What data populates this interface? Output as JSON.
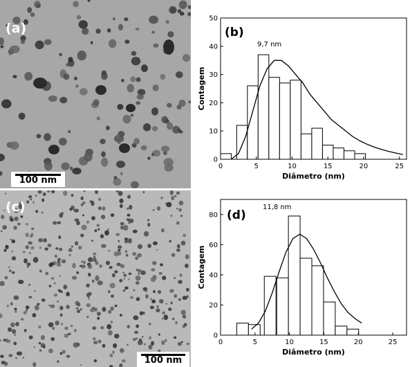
{
  "panels": {
    "a": {
      "label": "(a)",
      "scale_bar": "100 nm"
    },
    "b": {
      "label": "(b)"
    },
    "c": {
      "label": "(c)",
      "scale_bar": "100 nm"
    },
    "d": {
      "label": "(d)"
    }
  },
  "chart_data": [
    {
      "type": "bar",
      "panel": "(b)",
      "xlabel": "Diâmetro (nm)",
      "ylabel": "Contagem",
      "annotation": "9,7 nm",
      "xlim": [
        0,
        26
      ],
      "ylim": [
        0,
        50
      ],
      "xticks": [
        "0",
        "5",
        "10",
        "15",
        "20",
        "25"
      ],
      "yticks": [
        "0",
        "10",
        "20",
        "30",
        "40",
        "50"
      ],
      "bin_width": 1.5,
      "bins": [
        {
          "x": 0.75,
          "count": 2
        },
        {
          "x": 3.0,
          "count": 12
        },
        {
          "x": 4.5,
          "count": 26
        },
        {
          "x": 6.0,
          "count": 37
        },
        {
          "x": 7.5,
          "count": 29
        },
        {
          "x": 9.0,
          "count": 27
        },
        {
          "x": 10.5,
          "count": 28
        },
        {
          "x": 12.0,
          "count": 9
        },
        {
          "x": 13.5,
          "count": 11
        },
        {
          "x": 15.0,
          "count": 5
        },
        {
          "x": 16.5,
          "count": 4
        },
        {
          "x": 18.0,
          "count": 3
        },
        {
          "x": 19.5,
          "count": 2
        }
      ],
      "fit_curve": [
        [
          1.5,
          0
        ],
        [
          2.5,
          2
        ],
        [
          3.5,
          8
        ],
        [
          4.5,
          17
        ],
        [
          5.5,
          26
        ],
        [
          6.5,
          32
        ],
        [
          7.5,
          35
        ],
        [
          8.5,
          35
        ],
        [
          9.5,
          33
        ],
        [
          10.5,
          30
        ],
        [
          11.5,
          27
        ],
        [
          12.5,
          23
        ],
        [
          13.5,
          20
        ],
        [
          14.5,
          17
        ],
        [
          15.5,
          14
        ],
        [
          16.5,
          12
        ],
        [
          17.5,
          10
        ],
        [
          18.5,
          8
        ],
        [
          19.5,
          6.5
        ],
        [
          20.5,
          5.3
        ],
        [
          21.5,
          4.3
        ],
        [
          22.5,
          3.5
        ],
        [
          23.5,
          2.8
        ],
        [
          24.5,
          2.2
        ],
        [
          25.5,
          1.7
        ]
      ]
    },
    {
      "type": "bar",
      "panel": "(d)",
      "xlabel": "Diâmetro (nm)",
      "ylabel": "Contagem",
      "annotation": "11,8 nm",
      "xlim": [
        0,
        27
      ],
      "ylim": [
        0,
        90
      ],
      "xticks": [
        "0",
        "5",
        "10",
        "15",
        "20",
        "25"
      ],
      "yticks": [
        "0",
        "20",
        "40",
        "60",
        "80"
      ],
      "bin_width": 1.7,
      "bins": [
        {
          "x": 3.2,
          "count": 8
        },
        {
          "x": 4.9,
          "count": 7
        },
        {
          "x": 7.2,
          "count": 39
        },
        {
          "x": 9.0,
          "count": 38
        },
        {
          "x": 10.7,
          "count": 79
        },
        {
          "x": 12.4,
          "count": 51
        },
        {
          "x": 14.1,
          "count": 46
        },
        {
          "x": 15.8,
          "count": 22
        },
        {
          "x": 17.5,
          "count": 6
        },
        {
          "x": 19.2,
          "count": 4
        }
      ],
      "fit_curve": [
        [
          4.5,
          4
        ],
        [
          5.5,
          8
        ],
        [
          6.5,
          16
        ],
        [
          7.5,
          28
        ],
        [
          8.5,
          42
        ],
        [
          9.5,
          55
        ],
        [
          10.5,
          64
        ],
        [
          11.5,
          67
        ],
        [
          12.5,
          64
        ],
        [
          13.5,
          57
        ],
        [
          14.5,
          48
        ],
        [
          15.5,
          38
        ],
        [
          16.5,
          29
        ],
        [
          17.5,
          21
        ],
        [
          18.5,
          15
        ],
        [
          19.5,
          11
        ],
        [
          20.5,
          8
        ]
      ]
    }
  ]
}
